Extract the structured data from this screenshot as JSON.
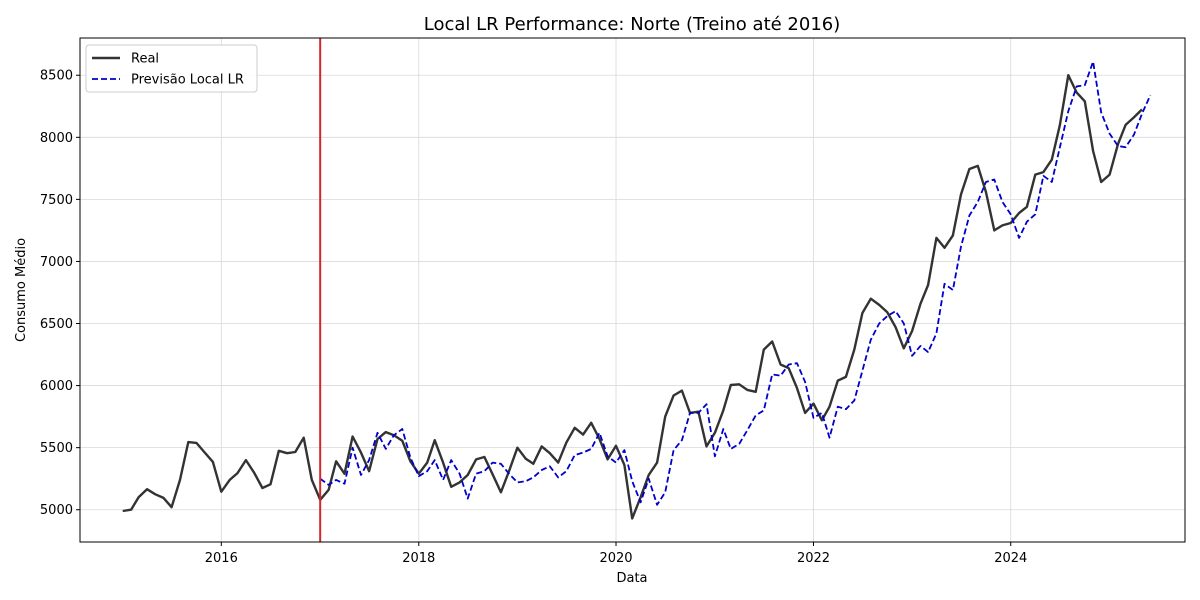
{
  "chart_data": {
    "type": "line",
    "title": "Local LR Performance: Norte (Treino até 2016)",
    "xlabel": "Data",
    "ylabel": "Consumo Médio",
    "xlim": [
      "2014-07-27",
      "2025-10-07"
    ],
    "ylim": [
      4740,
      8800
    ],
    "x_ticks": [
      "2016-01-01",
      "2018-01-01",
      "2020-01-01",
      "2022-01-01",
      "2024-01-01"
    ],
    "x_tick_labels": [
      "2016",
      "2018",
      "2020",
      "2022",
      "2024"
    ],
    "y_ticks": [
      5000,
      5500,
      6000,
      6500,
      7000,
      7500,
      8000,
      8500
    ],
    "y_tick_labels": [
      "5000",
      "5500",
      "6000",
      "6500",
      "7000",
      "7500",
      "8000",
      "8500"
    ],
    "grid": true,
    "legend_position": "top-left",
    "split_line": {
      "date": "2017-01-01",
      "color": "#d62728"
    },
    "series": [
      {
        "name": "Real",
        "color": "#333333",
        "style": "solid",
        "x_start": "2015-01",
        "values": [
          4990,
          5000,
          5100,
          5165,
          5125,
          5095,
          5020,
          5240,
          5545,
          5538,
          5460,
          5385,
          5145,
          5240,
          5295,
          5400,
          5300,
          5175,
          5205,
          5475,
          5455,
          5465,
          5580,
          5240,
          5080,
          5160,
          5390,
          5290,
          5590,
          5460,
          5310,
          5570,
          5625,
          5600,
          5555,
          5390,
          5290,
          5380,
          5560,
          5380,
          5185,
          5220,
          5280,
          5405,
          5425,
          5285,
          5140,
          5310,
          5500,
          5410,
          5370,
          5510,
          5455,
          5380,
          5540,
          5660,
          5605,
          5700,
          5570,
          5405,
          5515,
          5360,
          4930,
          5100,
          5280,
          5380,
          5750,
          5920,
          5960,
          5780,
          5790,
          5510,
          5620,
          5800,
          6005,
          6010,
          5965,
          5950,
          6290,
          6355,
          6170,
          6140,
          5980,
          5780,
          5855,
          5720,
          5830,
          6040,
          6070,
          6290,
          6585,
          6700,
          6650,
          6590,
          6470,
          6300,
          6440,
          6660,
          6810,
          7190,
          7110,
          7210,
          7540,
          7745,
          7770,
          7560,
          7250,
          7290,
          7310,
          7390,
          7440,
          7700,
          7720,
          7820,
          8100,
          8500,
          8360,
          8290,
          7890,
          7640,
          7700,
          7945,
          8100,
          8160,
          8225
        ]
      },
      {
        "name": "Previsão Local LR",
        "color": "#0000cc",
        "style": "dashed",
        "x_start": "2017-01",
        "values": [
          5250,
          5200,
          5240,
          5210,
          5500,
          5280,
          5400,
          5620,
          5490,
          5600,
          5650,
          5420,
          5270,
          5310,
          5400,
          5240,
          5400,
          5290,
          5090,
          5290,
          5310,
          5380,
          5370,
          5290,
          5220,
          5230,
          5260,
          5320,
          5350,
          5260,
          5310,
          5440,
          5460,
          5490,
          5620,
          5430,
          5380,
          5480,
          5230,
          5060,
          5250,
          5040,
          5140,
          5480,
          5560,
          5780,
          5780,
          5850,
          5430,
          5650,
          5490,
          5530,
          5640,
          5760,
          5800,
          6090,
          6080,
          6170,
          6180,
          6030,
          5740,
          5780,
          5580,
          5830,
          5810,
          5880,
          6120,
          6370,
          6500,
          6560,
          6600,
          6500,
          6240,
          6320,
          6270,
          6420,
          6820,
          6770,
          7120,
          7370,
          7480,
          7640,
          7660,
          7480,
          7380,
          7190,
          7320,
          7380,
          7690,
          7640,
          7920,
          8210,
          8410,
          8420,
          8610,
          8200,
          8030,
          7930,
          7920,
          8020,
          8190,
          8340
        ]
      }
    ]
  }
}
